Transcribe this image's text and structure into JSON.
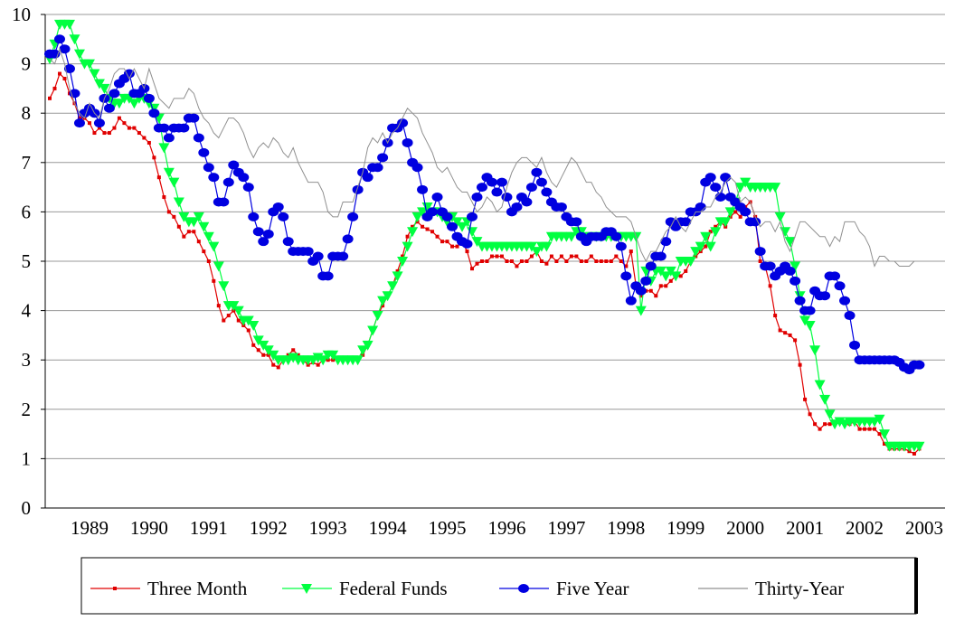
{
  "chart_data": {
    "type": "line",
    "categories": [
      null,
      null,
      null,
      null,
      null,
      null,
      null,
      null,
      "1989",
      null,
      null,
      null,
      null,
      null,
      null,
      null,
      null,
      null,
      null,
      null,
      "1990",
      null,
      null,
      null,
      null,
      null,
      null,
      null,
      null,
      null,
      null,
      null,
      "1991",
      null,
      null,
      null,
      null,
      null,
      null,
      null,
      null,
      null,
      null,
      null,
      "1992",
      null,
      null,
      null,
      null,
      null,
      null,
      null,
      null,
      null,
      null,
      null,
      "1993",
      null,
      null,
      null,
      null,
      null,
      null,
      null,
      null,
      null,
      null,
      null,
      "1994",
      null,
      null,
      null,
      null,
      null,
      null,
      null,
      null,
      null,
      null,
      null,
      "1995",
      null,
      null,
      null,
      null,
      null,
      null,
      null,
      null,
      null,
      null,
      null,
      "1996",
      null,
      null,
      null,
      null,
      null,
      null,
      null,
      null,
      null,
      null,
      null,
      "1997",
      null,
      null,
      null,
      null,
      null,
      null,
      null,
      null,
      null,
      null,
      null,
      "1998",
      null,
      null,
      null,
      null,
      null,
      null,
      null,
      null,
      null,
      null,
      null,
      "1999",
      null,
      null,
      null,
      null,
      null,
      null,
      null,
      null,
      null,
      null,
      null,
      "2000",
      null,
      null,
      null,
      null,
      null,
      null,
      null,
      null,
      null,
      null,
      null,
      "2001",
      null,
      null,
      null,
      null,
      null,
      null,
      null,
      null,
      null,
      null,
      null,
      "2002",
      null,
      null,
      null,
      null,
      null,
      null,
      null,
      null,
      null,
      null,
      null,
      "2003"
    ],
    "series": [
      {
        "name": "Three Month",
        "color": "#e00000",
        "marker": "square",
        "values": [
          8.3,
          8.5,
          8.8,
          8.7,
          8.4,
          8.2,
          7.9,
          7.9,
          7.8,
          7.6,
          7.7,
          7.6,
          7.6,
          7.7,
          7.9,
          7.8,
          7.7,
          7.7,
          7.6,
          7.5,
          7.4,
          7.1,
          6.7,
          6.3,
          6.0,
          5.9,
          5.7,
          5.5,
          5.6,
          5.6,
          5.4,
          5.2,
          5.0,
          4.6,
          4.1,
          3.8,
          3.9,
          4.0,
          3.8,
          3.7,
          3.6,
          3.3,
          3.2,
          3.1,
          3.1,
          2.9,
          2.85,
          3.0,
          3.1,
          3.2,
          3.1,
          3.0,
          2.9,
          2.95,
          2.9,
          3.0,
          3.0,
          3.0,
          3.0,
          3.0,
          3.0,
          3.0,
          3.0,
          3.1,
          3.3,
          3.6,
          3.9,
          4.1,
          4.3,
          4.5,
          4.8,
          5.1,
          5.5,
          5.7,
          5.8,
          5.7,
          5.65,
          5.6,
          5.5,
          5.4,
          5.4,
          5.3,
          5.3,
          5.4,
          5.2,
          4.85,
          4.95,
          5.0,
          5.0,
          5.1,
          5.1,
          5.1,
          5.0,
          5.0,
          4.9,
          5.0,
          5.0,
          5.1,
          5.2,
          5.0,
          4.95,
          5.1,
          5.0,
          5.1,
          5.0,
          5.1,
          5.1,
          5.0,
          5.0,
          5.1,
          5.0,
          5.0,
          5.0,
          5.0,
          5.1,
          5.0,
          4.9,
          5.2,
          4.5,
          4.3,
          4.4,
          4.4,
          4.3,
          4.5,
          4.5,
          4.6,
          4.7,
          4.7,
          4.8,
          5.0,
          5.1,
          5.2,
          5.3,
          5.6,
          5.7,
          5.8,
          5.7,
          5.9,
          6.0,
          5.9,
          6.1,
          6.2,
          5.9,
          5.0,
          4.9,
          4.5,
          3.9,
          3.6,
          3.55,
          3.5,
          3.4,
          2.9,
          2.2,
          1.9,
          1.7,
          1.6,
          1.7,
          1.7,
          1.7,
          1.75,
          1.7,
          1.7,
          1.75,
          1.6,
          1.6,
          1.6,
          1.6,
          1.5,
          1.3,
          1.2,
          1.2,
          1.2,
          1.2,
          1.15,
          1.1,
          1.2,
          null
        ]
      },
      {
        "name": "Federal Funds",
        "color": "#00ff40",
        "marker": "triangle",
        "values": [
          9.1,
          9.4,
          9.8,
          9.8,
          9.8,
          9.5,
          9.2,
          9.0,
          9.0,
          8.8,
          8.6,
          8.5,
          8.3,
          8.2,
          8.2,
          8.3,
          8.3,
          8.2,
          8.3,
          8.3,
          8.2,
          8.1,
          7.9,
          7.3,
          6.8,
          6.6,
          6.2,
          5.9,
          5.8,
          5.8,
          5.9,
          5.7,
          5.5,
          5.3,
          4.9,
          4.5,
          4.1,
          4.1,
          4.0,
          3.8,
          3.8,
          3.7,
          3.4,
          3.3,
          3.2,
          3.1,
          3.0,
          3.0,
          3.0,
          3.05,
          3.0,
          3.0,
          3.0,
          3.0,
          3.05,
          3.0,
          3.1,
          3.1,
          3.0,
          3.0,
          3.0,
          3.0,
          3.0,
          3.2,
          3.3,
          3.6,
          3.9,
          4.2,
          4.3,
          4.5,
          4.7,
          5.0,
          5.3,
          5.6,
          5.9,
          6.0,
          6.1,
          6.0,
          6.0,
          5.9,
          5.8,
          5.9,
          5.8,
          5.7,
          5.8,
          5.6,
          5.4,
          5.3,
          5.3,
          5.3,
          5.3,
          5.3,
          5.3,
          5.3,
          5.3,
          5.3,
          5.3,
          5.3,
          5.2,
          5.3,
          5.3,
          5.5,
          5.5,
          5.5,
          5.5,
          5.5,
          5.6,
          5.6,
          5.5,
          5.5,
          5.5,
          5.5,
          5.5,
          5.5,
          5.5,
          5.5,
          5.5,
          5.5,
          5.5,
          4.0,
          4.8,
          4.6,
          4.8,
          4.8,
          4.7,
          4.8,
          4.7,
          5.0,
          5.0,
          5.0,
          5.2,
          5.3,
          5.5,
          5.3,
          5.6,
          5.8,
          5.8,
          6.0,
          6.2,
          6.5,
          6.6,
          6.5,
          6.5,
          6.5,
          6.5,
          6.5,
          6.5,
          5.9,
          5.6,
          5.4,
          4.9,
          4.3,
          3.8,
          3.7,
          3.2,
          2.5,
          2.2,
          1.9,
          1.7,
          1.75,
          1.7,
          1.75,
          1.75,
          1.75,
          1.75,
          1.75,
          1.75,
          1.8,
          1.5,
          1.25,
          1.25,
          1.25,
          1.25,
          1.25,
          1.25,
          1.25,
          null
        ]
      },
      {
        "name": "Five Year",
        "color": "#0000e0",
        "marker": "ellipse",
        "values": [
          9.2,
          9.2,
          9.5,
          9.3,
          8.9,
          8.4,
          7.8,
          8.0,
          8.1,
          8.0,
          7.8,
          8.3,
          8.1,
          8.4,
          8.6,
          8.7,
          8.8,
          8.4,
          8.4,
          8.5,
          8.3,
          8.0,
          7.7,
          7.7,
          7.5,
          7.7,
          7.7,
          7.7,
          7.9,
          7.9,
          7.5,
          7.2,
          6.9,
          6.7,
          6.2,
          6.2,
          6.6,
          6.95,
          6.8,
          6.7,
          6.5,
          5.9,
          5.6,
          5.4,
          5.55,
          6.0,
          6.1,
          5.9,
          5.4,
          5.2,
          5.2,
          5.2,
          5.2,
          5.0,
          5.1,
          4.7,
          4.7,
          5.1,
          5.1,
          5.1,
          5.45,
          5.9,
          6.45,
          6.8,
          6.7,
          6.9,
          6.9,
          7.1,
          7.4,
          7.7,
          7.7,
          7.8,
          7.4,
          7.0,
          6.9,
          6.45,
          5.9,
          6.0,
          6.3,
          6.0,
          5.9,
          5.7,
          5.5,
          5.4,
          5.35,
          5.9,
          6.3,
          6.5,
          6.7,
          6.6,
          6.4,
          6.6,
          6.3,
          6.0,
          6.1,
          6.3,
          6.2,
          6.5,
          6.8,
          6.6,
          6.4,
          6.2,
          6.1,
          6.1,
          5.9,
          5.8,
          5.8,
          5.5,
          5.4,
          5.5,
          5.5,
          5.5,
          5.6,
          5.6,
          5.5,
          5.3,
          4.7,
          4.2,
          4.5,
          4.4,
          4.6,
          4.9,
          5.1,
          5.1,
          5.4,
          5.8,
          5.7,
          5.8,
          5.8,
          6.0,
          6.0,
          6.1,
          6.6,
          6.7,
          6.5,
          6.3,
          6.7,
          6.3,
          6.2,
          6.1,
          6.0,
          5.8,
          5.8,
          5.2,
          4.9,
          4.9,
          4.7,
          4.8,
          4.9,
          4.8,
          4.6,
          4.2,
          4.0,
          4.0,
          4.4,
          4.3,
          4.3,
          4.7,
          4.7,
          4.5,
          4.2,
          3.9,
          3.3,
          3.0,
          3.0,
          3.0,
          3.0,
          3.0,
          3.0,
          3.0,
          3.0,
          2.95,
          2.85,
          2.8,
          2.9,
          2.9,
          null
        ]
      },
      {
        "name": "Thirty-Year",
        "color": "#909090",
        "marker": "none",
        "values": [
          9.1,
          9.0,
          9.3,
          9.0,
          8.5,
          8.2,
          8.0,
          7.9,
          8.2,
          8.0,
          7.9,
          8.3,
          8.5,
          8.8,
          8.9,
          8.9,
          8.7,
          8.9,
          8.7,
          8.5,
          8.9,
          8.6,
          8.3,
          8.2,
          8.1,
          8.3,
          8.3,
          8.3,
          8.5,
          8.4,
          8.1,
          7.9,
          7.8,
          7.6,
          7.5,
          7.7,
          7.9,
          7.9,
          7.8,
          7.6,
          7.3,
          7.1,
          7.3,
          7.4,
          7.3,
          7.5,
          7.4,
          7.2,
          7.1,
          7.3,
          7.0,
          6.8,
          6.6,
          6.6,
          6.6,
          6.4,
          6.0,
          5.9,
          5.9,
          6.2,
          6.2,
          6.2,
          6.5,
          6.8,
          7.3,
          7.5,
          7.4,
          7.6,
          7.4,
          7.6,
          7.7,
          7.9,
          8.1,
          8.0,
          7.9,
          7.6,
          7.4,
          7.2,
          6.9,
          6.8,
          6.9,
          6.7,
          6.5,
          6.4,
          6.4,
          6.2,
          6.0,
          6.1,
          6.3,
          6.2,
          6.0,
          6.1,
          6.5,
          6.8,
          7.0,
          7.1,
          7.1,
          7.0,
          6.9,
          7.1,
          6.8,
          6.6,
          6.5,
          6.7,
          6.9,
          7.1,
          7.0,
          6.8,
          6.6,
          6.6,
          6.4,
          6.3,
          6.1,
          6.0,
          5.9,
          5.9,
          5.9,
          5.8,
          5.5,
          5.2,
          5.0,
          5.2,
          5.2,
          5.4,
          5.6,
          5.7,
          5.9,
          5.7,
          5.6,
          5.8,
          6.0,
          6.0,
          6.1,
          6.1,
          6.3,
          6.4,
          6.6,
          6.7,
          6.6,
          6.2,
          6.3,
          6.2,
          5.9,
          5.7,
          5.8,
          5.8,
          5.6,
          5.8,
          5.4,
          5.2,
          5.5,
          5.8,
          5.8,
          5.7,
          5.6,
          5.5,
          5.5,
          5.3,
          5.5,
          5.4,
          5.8,
          5.8,
          5.8,
          5.6,
          5.5,
          5.3,
          4.9,
          5.1,
          5.1,
          5.0,
          5.0,
          4.9,
          4.9,
          4.9,
          5.0,
          null,
          null
        ]
      }
    ],
    "ylim": [
      0,
      10
    ],
    "yticks": [
      0,
      1,
      2,
      3,
      4,
      5,
      6,
      7,
      8,
      9,
      10
    ],
    "grid": true,
    "legend": "bottom"
  }
}
